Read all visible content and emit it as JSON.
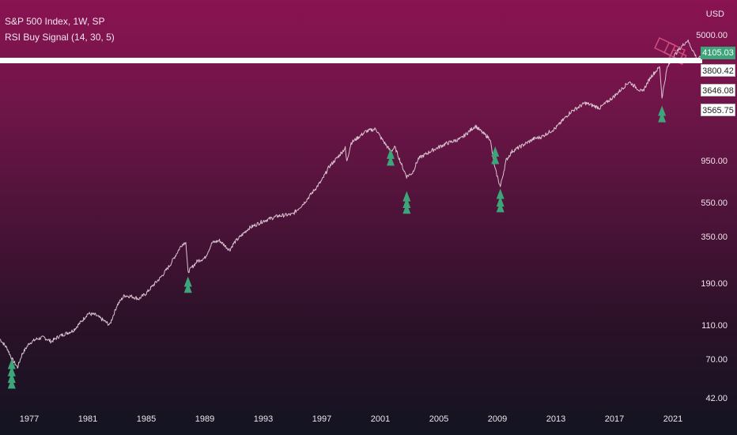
{
  "header": {
    "symbol_line": "S&P 500 Index, 1W, SP",
    "indicator_line": "RSI Buy Signal (14, 30, 5)"
  },
  "axis": {
    "currency": "USD"
  },
  "price_boxes": [
    "4105.03",
    "3800.42",
    "3646.08",
    "3565.75"
  ],
  "colors": {
    "signal": "#3da57a",
    "up": "#3da57a",
    "down": "#d04d7e",
    "line": "#d9c3cf"
  },
  "chart_data": {
    "type": "line",
    "title": "S&P 500 Index, 1W, SP",
    "yscale": "log",
    "ylim": [
      42,
      5000
    ],
    "xlim": [
      1975.0,
      2023.0
    ],
    "y_ticks": [
      5000,
      950,
      550,
      350,
      190,
      110,
      70,
      42
    ],
    "y_tick_labels": [
      "5000.00",
      "950.00",
      "550.00",
      "350.00",
      "190.00",
      "110.00",
      "70.00",
      "42.00"
    ],
    "x_ticks": [
      1977,
      1981,
      1985,
      1989,
      1993,
      1997,
      2001,
      2005,
      2009,
      2013,
      2017,
      2021
    ],
    "x_tick_labels": [
      "1977",
      "1981",
      "1985",
      "1989",
      "1993",
      "1997",
      "2001",
      "2005",
      "2009",
      "2013",
      "2017",
      "2021"
    ],
    "series": [
      {
        "values": [
          [
            1975.0,
            93
          ],
          [
            1975.5,
            82
          ],
          [
            1975.8,
            72
          ],
          [
            1976.2,
            64
          ],
          [
            1976.5,
            76
          ],
          [
            1977.0,
            88
          ],
          [
            1977.5,
            93
          ],
          [
            1978.0,
            95
          ],
          [
            1978.5,
            90
          ],
          [
            1979.0,
            96
          ],
          [
            1979.5,
            100
          ],
          [
            1980.0,
            104
          ],
          [
            1980.6,
            118
          ],
          [
            1981.0,
            130
          ],
          [
            1981.5,
            128
          ],
          [
            1982.0,
            120
          ],
          [
            1982.5,
            112
          ],
          [
            1983.0,
            145
          ],
          [
            1983.5,
            165
          ],
          [
            1984.0,
            163
          ],
          [
            1984.5,
            158
          ],
          [
            1985.0,
            170
          ],
          [
            1985.5,
            190
          ],
          [
            1986.0,
            210
          ],
          [
            1986.6,
            245
          ],
          [
            1987.4,
            320
          ],
          [
            1987.7,
            335
          ],
          [
            1987.85,
            225
          ],
          [
            1988.5,
            260
          ],
          [
            1989.0,
            270
          ],
          [
            1989.5,
            330
          ],
          [
            1990.0,
            340
          ],
          [
            1990.7,
            300
          ],
          [
            1991.0,
            330
          ],
          [
            1992.0,
            400
          ],
          [
            1993.0,
            440
          ],
          [
            1994.0,
            470
          ],
          [
            1995.0,
            480
          ],
          [
            1995.8,
            560
          ],
          [
            1997.0,
            750
          ],
          [
            1997.5,
            900
          ],
          [
            1998.0,
            1000
          ],
          [
            1998.6,
            1150
          ],
          [
            1998.7,
            960
          ],
          [
            1999.0,
            1230
          ],
          [
            2000.0,
            1430
          ],
          [
            2000.7,
            1480
          ],
          [
            2001.0,
            1330
          ],
          [
            2001.7,
            1100
          ],
          [
            2002.0,
            1160
          ],
          [
            2002.5,
            900
          ],
          [
            2002.8,
            790
          ],
          [
            2003.2,
            830
          ],
          [
            2003.6,
            1000
          ],
          [
            2004.5,
            1110
          ],
          [
            2005.5,
            1220
          ],
          [
            2006.5,
            1300
          ],
          [
            2007.5,
            1540
          ],
          [
            2008.0,
            1400
          ],
          [
            2008.5,
            1300
          ],
          [
            2008.8,
            900
          ],
          [
            2009.2,
            690
          ],
          [
            2009.6,
            980
          ],
          [
            2010.0,
            1100
          ],
          [
            2011.5,
            1300
          ],
          [
            2012.0,
            1330
          ],
          [
            2013.0,
            1500
          ],
          [
            2014.0,
            1850
          ],
          [
            2015.0,
            2080
          ],
          [
            2016.0,
            1950
          ],
          [
            2017.0,
            2280
          ],
          [
            2018.0,
            2750
          ],
          [
            2018.9,
            2400
          ],
          [
            2019.5,
            2950
          ],
          [
            2020.1,
            3350
          ],
          [
            2020.25,
            2240
          ],
          [
            2020.6,
            3300
          ],
          [
            2021.0,
            3800
          ],
          [
            2021.5,
            4300
          ],
          [
            2022.0,
            4750
          ],
          [
            2022.4,
            4100
          ],
          [
            2022.7,
            3650
          ],
          [
            2023.0,
            3950
          ]
        ]
      }
    ],
    "buy_signals": [
      {
        "x": 1975.8,
        "y": 66
      },
      {
        "x": 1975.8,
        "y": 60
      },
      {
        "x": 1975.8,
        "y": 55
      },
      {
        "x": 1975.8,
        "y": 51
      },
      {
        "x": 1987.85,
        "y": 195
      },
      {
        "x": 1987.85,
        "y": 180
      },
      {
        "x": 2001.7,
        "y": 1050
      },
      {
        "x": 2001.7,
        "y": 960
      },
      {
        "x": 2002.8,
        "y": 600
      },
      {
        "x": 2002.8,
        "y": 550
      },
      {
        "x": 2002.8,
        "y": 510
      },
      {
        "x": 2008.85,
        "y": 1080
      },
      {
        "x": 2008.85,
        "y": 980
      },
      {
        "x": 2009.2,
        "y": 620
      },
      {
        "x": 2009.2,
        "y": 560
      },
      {
        "x": 2009.2,
        "y": 520
      },
      {
        "x": 2020.25,
        "y": 1850
      },
      {
        "x": 2020.25,
        "y": 1700
      }
    ],
    "grid": false,
    "legend": "top-left"
  }
}
